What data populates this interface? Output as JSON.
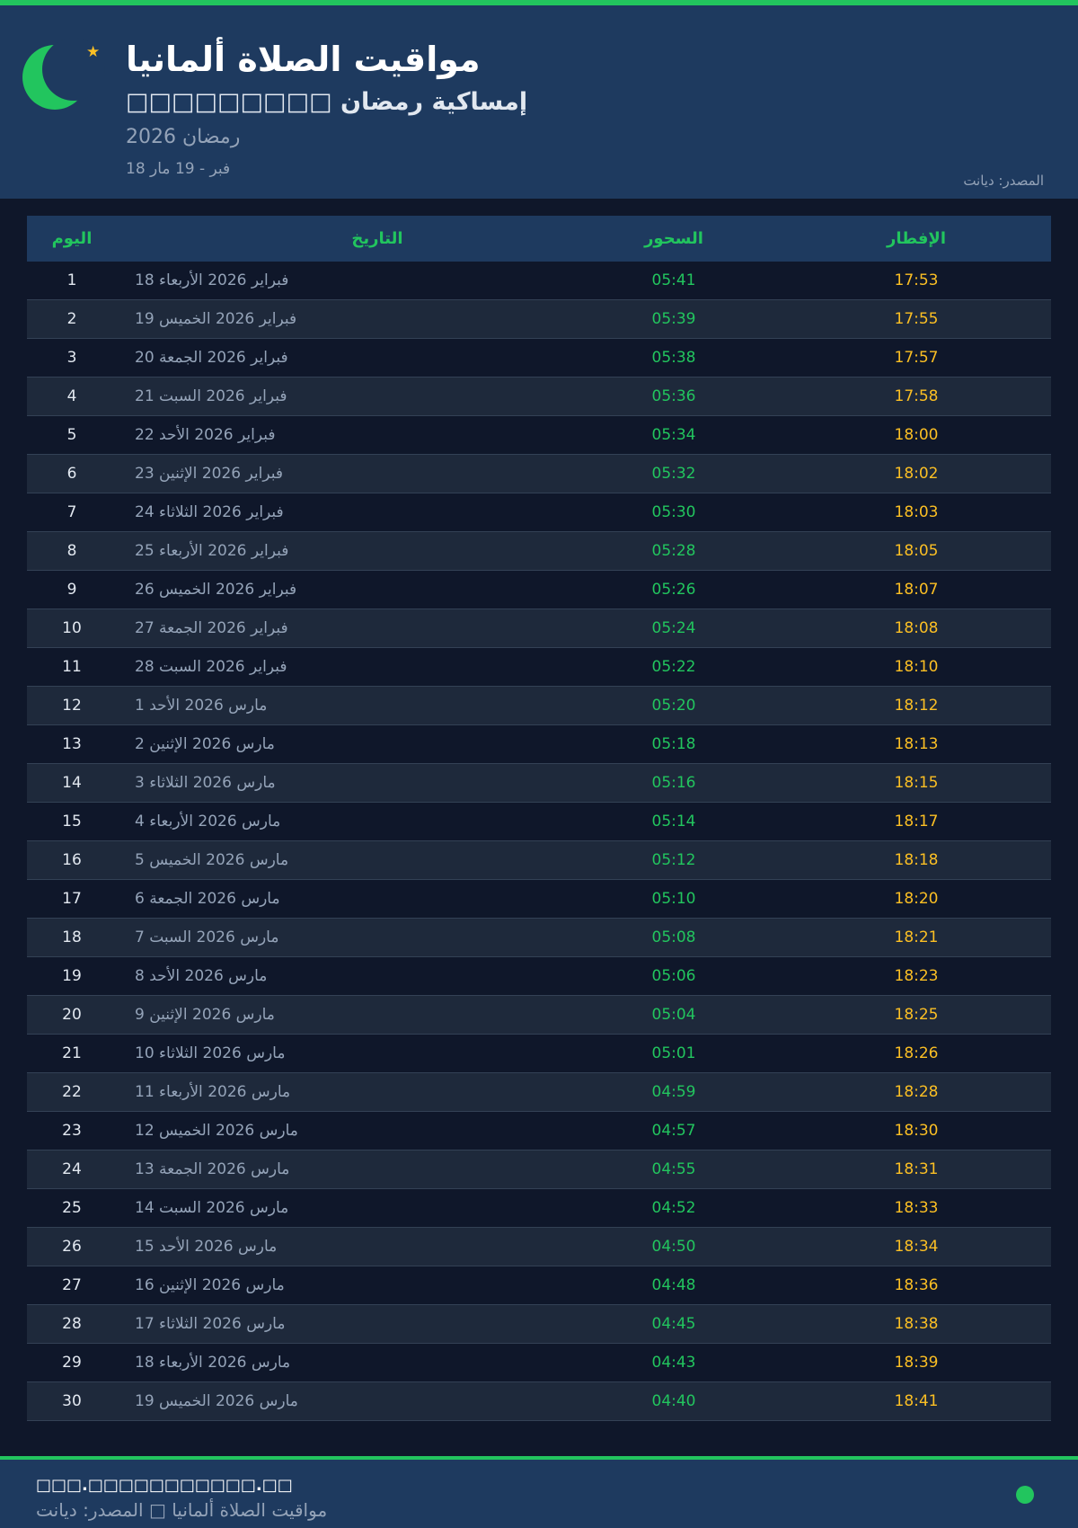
{
  "header": {
    "title": "مواقيت الصلاة ألمانيا",
    "subtitle": "□□□□□□□□□ إمساكية رمضان",
    "year": "رمضان 2026",
    "range": "18 فبر - 19 مار",
    "source": "المصدر: ديانت"
  },
  "colors": {
    "accent": "#22c55e",
    "iftar": "#fbbf24",
    "header_bg": "#1e3a5f",
    "page_bg": "#0f172a"
  },
  "table": {
    "headers": {
      "day": "اليوم",
      "date": "التاريخ",
      "suhoor": "السحور",
      "iftar": "الإفطار"
    },
    "rows": [
      {
        "day": "1",
        "date": "18 فبراير 2026 الأربعاء",
        "suhoor": "05:41",
        "iftar": "17:53"
      },
      {
        "day": "2",
        "date": "19 فبراير 2026 الخميس",
        "suhoor": "05:39",
        "iftar": "17:55"
      },
      {
        "day": "3",
        "date": "20 فبراير 2026 الجمعة",
        "suhoor": "05:38",
        "iftar": "17:57"
      },
      {
        "day": "4",
        "date": "21 فبراير 2026 السبت",
        "suhoor": "05:36",
        "iftar": "17:58"
      },
      {
        "day": "5",
        "date": "22 فبراير 2026 الأحد",
        "suhoor": "05:34",
        "iftar": "18:00"
      },
      {
        "day": "6",
        "date": "23 فبراير 2026 الإثنين",
        "suhoor": "05:32",
        "iftar": "18:02"
      },
      {
        "day": "7",
        "date": "24 فبراير 2026 الثلاثاء",
        "suhoor": "05:30",
        "iftar": "18:03"
      },
      {
        "day": "8",
        "date": "25 فبراير 2026 الأربعاء",
        "suhoor": "05:28",
        "iftar": "18:05"
      },
      {
        "day": "9",
        "date": "26 فبراير 2026 الخميس",
        "suhoor": "05:26",
        "iftar": "18:07"
      },
      {
        "day": "10",
        "date": "27 فبراير 2026 الجمعة",
        "suhoor": "05:24",
        "iftar": "18:08"
      },
      {
        "day": "11",
        "date": "28 فبراير 2026 السبت",
        "suhoor": "05:22",
        "iftar": "18:10"
      },
      {
        "day": "12",
        "date": "1 مارس 2026 الأحد",
        "suhoor": "05:20",
        "iftar": "18:12"
      },
      {
        "day": "13",
        "date": "2 مارس 2026 الإثنين",
        "suhoor": "05:18",
        "iftar": "18:13"
      },
      {
        "day": "14",
        "date": "3 مارس 2026 الثلاثاء",
        "suhoor": "05:16",
        "iftar": "18:15"
      },
      {
        "day": "15",
        "date": "4 مارس 2026 الأربعاء",
        "suhoor": "05:14",
        "iftar": "18:17"
      },
      {
        "day": "16",
        "date": "5 مارس 2026 الخميس",
        "suhoor": "05:12",
        "iftar": "18:18"
      },
      {
        "day": "17",
        "date": "6 مارس 2026 الجمعة",
        "suhoor": "05:10",
        "iftar": "18:20"
      },
      {
        "day": "18",
        "date": "7 مارس 2026 السبت",
        "suhoor": "05:08",
        "iftar": "18:21"
      },
      {
        "day": "19",
        "date": "8 مارس 2026 الأحد",
        "suhoor": "05:06",
        "iftar": "18:23"
      },
      {
        "day": "20",
        "date": "9 مارس 2026 الإثنين",
        "suhoor": "05:04",
        "iftar": "18:25"
      },
      {
        "day": "21",
        "date": "10 مارس 2026 الثلاثاء",
        "suhoor": "05:01",
        "iftar": "18:26"
      },
      {
        "day": "22",
        "date": "11 مارس 2026 الأربعاء",
        "suhoor": "04:59",
        "iftar": "18:28"
      },
      {
        "day": "23",
        "date": "12 مارس 2026 الخميس",
        "suhoor": "04:57",
        "iftar": "18:30"
      },
      {
        "day": "24",
        "date": "13 مارس 2026 الجمعة",
        "suhoor": "04:55",
        "iftar": "18:31"
      },
      {
        "day": "25",
        "date": "14 مارس 2026 السبت",
        "suhoor": "04:52",
        "iftar": "18:33"
      },
      {
        "day": "26",
        "date": "15 مارس 2026 الأحد",
        "suhoor": "04:50",
        "iftar": "18:34"
      },
      {
        "day": "27",
        "date": "16 مارس 2026 الإثنين",
        "suhoor": "04:48",
        "iftar": "18:36"
      },
      {
        "day": "28",
        "date": "17 مارس 2026 الثلاثاء",
        "suhoor": "04:45",
        "iftar": "18:38"
      },
      {
        "day": "29",
        "date": "18 مارس 2026 الأربعاء",
        "suhoor": "04:43",
        "iftar": "18:39"
      },
      {
        "day": "30",
        "date": "19 مارس 2026 الخميس",
        "suhoor": "04:40",
        "iftar": "18:41"
      }
    ]
  },
  "footer": {
    "url": "□□□.□□□□□□□□□□□.□□",
    "text": "مواقيت الصلاة ألمانيا □ المصدر: ديانت"
  }
}
